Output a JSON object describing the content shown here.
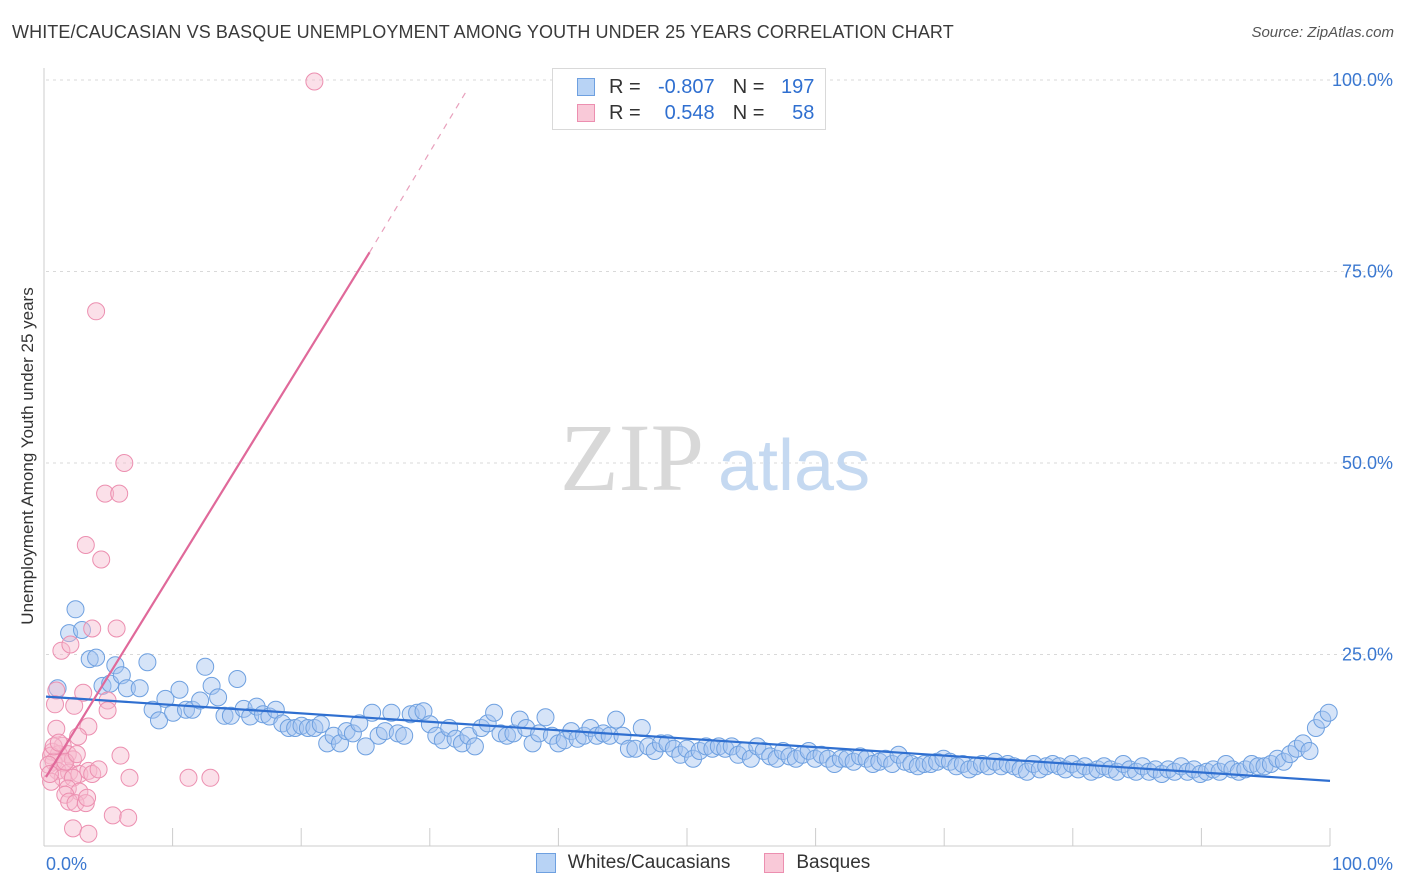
{
  "header": {
    "title": "WHITE/CAUCASIAN VS BASQUE UNEMPLOYMENT AMONG YOUTH UNDER 25 YEARS CORRELATION CHART",
    "source": "Source: ZipAtlas.com"
  },
  "watermark": {
    "zip": "ZIP",
    "atlas": "atlas"
  },
  "legend": {
    "r_label": "R =",
    "n_label": "N =",
    "whites": {
      "r": "-0.807",
      "n": "197",
      "color": "#6ea0e0"
    },
    "basques": {
      "r": "0.548",
      "n": "58",
      "color": "#ec8fb0"
    }
  },
  "bottom_legend": {
    "whites": "Whites/Caucasians",
    "basques": "Basques"
  },
  "chart_data": {
    "type": "scatter",
    "title": "WHITE/CAUCASIAN VS BASQUE UNEMPLOYMENT AMONG YOUTH UNDER 25 YEARS CORRELATION CHART",
    "xlabel": "",
    "ylabel": "Unemployment Among Youth under 25 years",
    "xlim": [
      0,
      100
    ],
    "ylim": [
      0,
      100
    ],
    "x_tick_labels": [
      "0.0%",
      "100.0%"
    ],
    "y_tick_labels": [
      "25.0%",
      "50.0%",
      "75.0%",
      "100.0%"
    ],
    "y_ticks": [
      25,
      50,
      75,
      100
    ],
    "grid": "horizontal dashed",
    "legend_position": "top-center",
    "series": [
      {
        "name": "Whites/Caucasians",
        "color": "#6ea0e0",
        "r": -0.807,
        "n": 197,
        "trend": {
          "x": [
            0,
            100
          ],
          "y": [
            19.5,
            8.5
          ],
          "dashed_extension": false
        },
        "points": [
          [
            0.9,
            20.6
          ],
          [
            1.8,
            27.8
          ],
          [
            2.3,
            30.9
          ],
          [
            2.8,
            28.2
          ],
          [
            3.4,
            24.4
          ],
          [
            3.9,
            24.6
          ],
          [
            4.4,
            20.9
          ],
          [
            5.0,
            21.2
          ],
          [
            5.4,
            23.6
          ],
          [
            5.9,
            22.3
          ],
          [
            6.3,
            20.6
          ],
          [
            7.3,
            20.6
          ],
          [
            7.9,
            24.0
          ],
          [
            8.3,
            17.8
          ],
          [
            8.8,
            16.4
          ],
          [
            9.3,
            19.2
          ],
          [
            9.9,
            17.4
          ],
          [
            10.4,
            20.4
          ],
          [
            10.9,
            17.8
          ],
          [
            11.4,
            17.8
          ],
          [
            12.0,
            19.0
          ],
          [
            12.4,
            23.4
          ],
          [
            12.9,
            20.9
          ],
          [
            13.4,
            19.4
          ],
          [
            13.9,
            17.0
          ],
          [
            14.4,
            17.0
          ],
          [
            14.9,
            21.8
          ],
          [
            15.4,
            17.9
          ],
          [
            15.9,
            16.9
          ],
          [
            16.4,
            18.2
          ],
          [
            16.9,
            17.2
          ],
          [
            17.4,
            16.9
          ],
          [
            17.9,
            17.8
          ],
          [
            18.4,
            16.0
          ],
          [
            18.9,
            15.4
          ],
          [
            19.4,
            15.4
          ],
          [
            19.9,
            15.7
          ],
          [
            20.4,
            15.4
          ],
          [
            20.9,
            15.4
          ],
          [
            21.4,
            15.9
          ],
          [
            21.9,
            13.4
          ],
          [
            22.4,
            14.4
          ],
          [
            22.9,
            13.4
          ],
          [
            23.4,
            15.0
          ],
          [
            23.9,
            14.7
          ],
          [
            24.4,
            16.0
          ],
          [
            24.9,
            13.0
          ],
          [
            25.4,
            17.4
          ],
          [
            25.9,
            14.4
          ],
          [
            26.4,
            15.0
          ],
          [
            26.9,
            17.4
          ],
          [
            27.4,
            14.7
          ],
          [
            27.9,
            14.4
          ],
          [
            28.4,
            17.2
          ],
          [
            28.9,
            17.4
          ],
          [
            29.4,
            17.6
          ],
          [
            29.9,
            15.9
          ],
          [
            30.4,
            14.4
          ],
          [
            30.9,
            13.8
          ],
          [
            31.4,
            15.4
          ],
          [
            31.9,
            14.0
          ],
          [
            32.4,
            13.4
          ],
          [
            32.9,
            14.4
          ],
          [
            33.4,
            13.0
          ],
          [
            33.9,
            15.4
          ],
          [
            34.4,
            16.0
          ],
          [
            34.9,
            17.4
          ],
          [
            35.4,
            14.7
          ],
          [
            35.9,
            14.4
          ],
          [
            36.4,
            14.7
          ],
          [
            36.9,
            16.5
          ],
          [
            37.4,
            15.4
          ],
          [
            37.9,
            13.4
          ],
          [
            38.4,
            14.7
          ],
          [
            38.9,
            16.8
          ],
          [
            39.4,
            14.4
          ],
          [
            39.9,
            13.4
          ],
          [
            40.4,
            13.8
          ],
          [
            40.9,
            15.0
          ],
          [
            41.4,
            14.0
          ],
          [
            41.9,
            14.4
          ],
          [
            42.4,
            15.4
          ],
          [
            42.9,
            14.4
          ],
          [
            43.4,
            14.7
          ],
          [
            43.9,
            14.4
          ],
          [
            44.4,
            16.5
          ],
          [
            44.9,
            14.4
          ],
          [
            45.4,
            12.7
          ],
          [
            45.9,
            12.7
          ],
          [
            46.4,
            15.4
          ],
          [
            46.9,
            13.0
          ],
          [
            47.4,
            12.4
          ],
          [
            47.9,
            13.4
          ],
          [
            48.4,
            13.4
          ],
          [
            48.9,
            12.7
          ],
          [
            49.4,
            11.9
          ],
          [
            49.9,
            12.7
          ],
          [
            50.4,
            11.4
          ],
          [
            50.9,
            12.4
          ],
          [
            51.4,
            13.0
          ],
          [
            51.9,
            12.7
          ],
          [
            52.4,
            13.0
          ],
          [
            52.9,
            12.7
          ],
          [
            53.4,
            13.0
          ],
          [
            53.9,
            11.9
          ],
          [
            54.4,
            12.4
          ],
          [
            54.9,
            11.4
          ],
          [
            55.4,
            13.0
          ],
          [
            55.9,
            12.4
          ],
          [
            56.4,
            11.7
          ],
          [
            56.9,
            11.4
          ],
          [
            57.4,
            12.4
          ],
          [
            57.9,
            11.7
          ],
          [
            58.4,
            11.4
          ],
          [
            58.9,
            11.9
          ],
          [
            59.4,
            12.4
          ],
          [
            59.9,
            11.4
          ],
          [
            60.4,
            11.9
          ],
          [
            60.9,
            11.4
          ],
          [
            61.4,
            10.7
          ],
          [
            61.9,
            11.4
          ],
          [
            62.4,
            11.4
          ],
          [
            62.9,
            11.0
          ],
          [
            63.4,
            11.7
          ],
          [
            63.9,
            11.4
          ],
          [
            64.4,
            10.7
          ],
          [
            64.9,
            11.0
          ],
          [
            65.4,
            11.4
          ],
          [
            65.9,
            10.7
          ],
          [
            66.4,
            11.9
          ],
          [
            66.9,
            11.0
          ],
          [
            67.4,
            10.7
          ],
          [
            67.9,
            10.4
          ],
          [
            68.4,
            10.7
          ],
          [
            68.9,
            10.7
          ],
          [
            69.4,
            11.0
          ],
          [
            69.9,
            11.4
          ],
          [
            70.4,
            11.0
          ],
          [
            70.9,
            10.4
          ],
          [
            71.4,
            10.7
          ],
          [
            71.9,
            10.0
          ],
          [
            72.4,
            10.4
          ],
          [
            72.9,
            10.7
          ],
          [
            73.4,
            10.4
          ],
          [
            73.9,
            11.0
          ],
          [
            74.4,
            10.4
          ],
          [
            74.9,
            10.7
          ],
          [
            75.4,
            10.4
          ],
          [
            75.9,
            10.0
          ],
          [
            76.4,
            9.7
          ],
          [
            76.9,
            10.7
          ],
          [
            77.4,
            10.0
          ],
          [
            77.9,
            10.4
          ],
          [
            78.4,
            10.7
          ],
          [
            78.9,
            10.4
          ],
          [
            79.4,
            10.0
          ],
          [
            79.9,
            10.7
          ],
          [
            80.4,
            10.0
          ],
          [
            80.9,
            10.4
          ],
          [
            81.4,
            9.7
          ],
          [
            81.9,
            10.0
          ],
          [
            82.4,
            10.4
          ],
          [
            82.9,
            10.0
          ],
          [
            83.4,
            9.7
          ],
          [
            83.9,
            10.7
          ],
          [
            84.4,
            10.0
          ],
          [
            84.9,
            9.7
          ],
          [
            85.4,
            10.4
          ],
          [
            85.9,
            9.7
          ],
          [
            86.4,
            10.0
          ],
          [
            86.9,
            9.4
          ],
          [
            87.4,
            10.0
          ],
          [
            87.9,
            9.7
          ],
          [
            88.4,
            10.4
          ],
          [
            88.9,
            9.7
          ],
          [
            89.4,
            10.0
          ],
          [
            89.9,
            9.4
          ],
          [
            90.4,
            9.7
          ],
          [
            90.9,
            10.0
          ],
          [
            91.4,
            9.7
          ],
          [
            91.9,
            10.7
          ],
          [
            92.4,
            10.0
          ],
          [
            92.9,
            9.7
          ],
          [
            93.4,
            10.0
          ],
          [
            93.9,
            10.7
          ],
          [
            94.4,
            10.4
          ],
          [
            94.9,
            10.4
          ],
          [
            95.4,
            10.7
          ],
          [
            95.9,
            11.4
          ],
          [
            96.4,
            11.0
          ],
          [
            96.9,
            12.0
          ],
          [
            97.4,
            12.7
          ],
          [
            97.9,
            13.4
          ],
          [
            98.4,
            12.4
          ],
          [
            98.9,
            15.4
          ],
          [
            99.4,
            16.5
          ],
          [
            99.9,
            17.4
          ]
        ]
      },
      {
        "name": "Basques",
        "color": "#ec8fb0",
        "r": 0.548,
        "n": 58,
        "trend": {
          "x": [
            0,
            25.2
          ],
          "y": [
            9.0,
            77.5
          ],
          "dashed_extension_to": [
            32.9,
            99.0
          ]
        },
        "points": [
          [
            20.9,
            99.8
          ],
          [
            3.9,
            69.8
          ],
          [
            6.1,
            50.0
          ],
          [
            4.6,
            46.0
          ],
          [
            5.7,
            46.0
          ],
          [
            3.1,
            39.3
          ],
          [
            4.3,
            37.4
          ],
          [
            3.6,
            28.4
          ],
          [
            5.5,
            28.4
          ],
          [
            1.2,
            25.5
          ],
          [
            1.9,
            26.3
          ],
          [
            2.9,
            20.0
          ],
          [
            0.8,
            20.3
          ],
          [
            0.7,
            18.5
          ],
          [
            2.2,
            18.3
          ],
          [
            4.8,
            19.0
          ],
          [
            4.8,
            17.7
          ],
          [
            3.3,
            15.6
          ],
          [
            0.8,
            15.3
          ],
          [
            1.3,
            13.1
          ],
          [
            2.5,
            14.3
          ],
          [
            0.5,
            12.3
          ],
          [
            1.0,
            12.0
          ],
          [
            0.4,
            11.8
          ],
          [
            1.7,
            12.0
          ],
          [
            0.6,
            11.0
          ],
          [
            1.4,
            10.8
          ],
          [
            0.2,
            10.6
          ],
          [
            2.1,
            11.3
          ],
          [
            5.8,
            11.8
          ],
          [
            0.9,
            9.8
          ],
          [
            1.8,
            9.6
          ],
          [
            2.6,
            9.4
          ],
          [
            3.3,
            9.8
          ],
          [
            1.3,
            8.9
          ],
          [
            2.1,
            8.9
          ],
          [
            3.6,
            9.4
          ],
          [
            6.5,
            8.9
          ],
          [
            11.1,
            8.9
          ],
          [
            12.8,
            8.9
          ],
          [
            0.4,
            8.4
          ],
          [
            1.7,
            7.5
          ],
          [
            2.6,
            7.1
          ],
          [
            1.5,
            6.7
          ],
          [
            1.8,
            5.8
          ],
          [
            2.3,
            5.6
          ],
          [
            3.1,
            5.6
          ],
          [
            3.2,
            6.3
          ],
          [
            5.2,
            4.0
          ],
          [
            6.4,
            3.7
          ],
          [
            2.1,
            2.3
          ],
          [
            3.3,
            1.6
          ],
          [
            0.6,
            13.0
          ],
          [
            1.0,
            13.5
          ],
          [
            0.3,
            9.4
          ],
          [
            1.5,
            11.0
          ],
          [
            2.4,
            12.0
          ],
          [
            4.1,
            10.0
          ]
        ]
      }
    ]
  }
}
